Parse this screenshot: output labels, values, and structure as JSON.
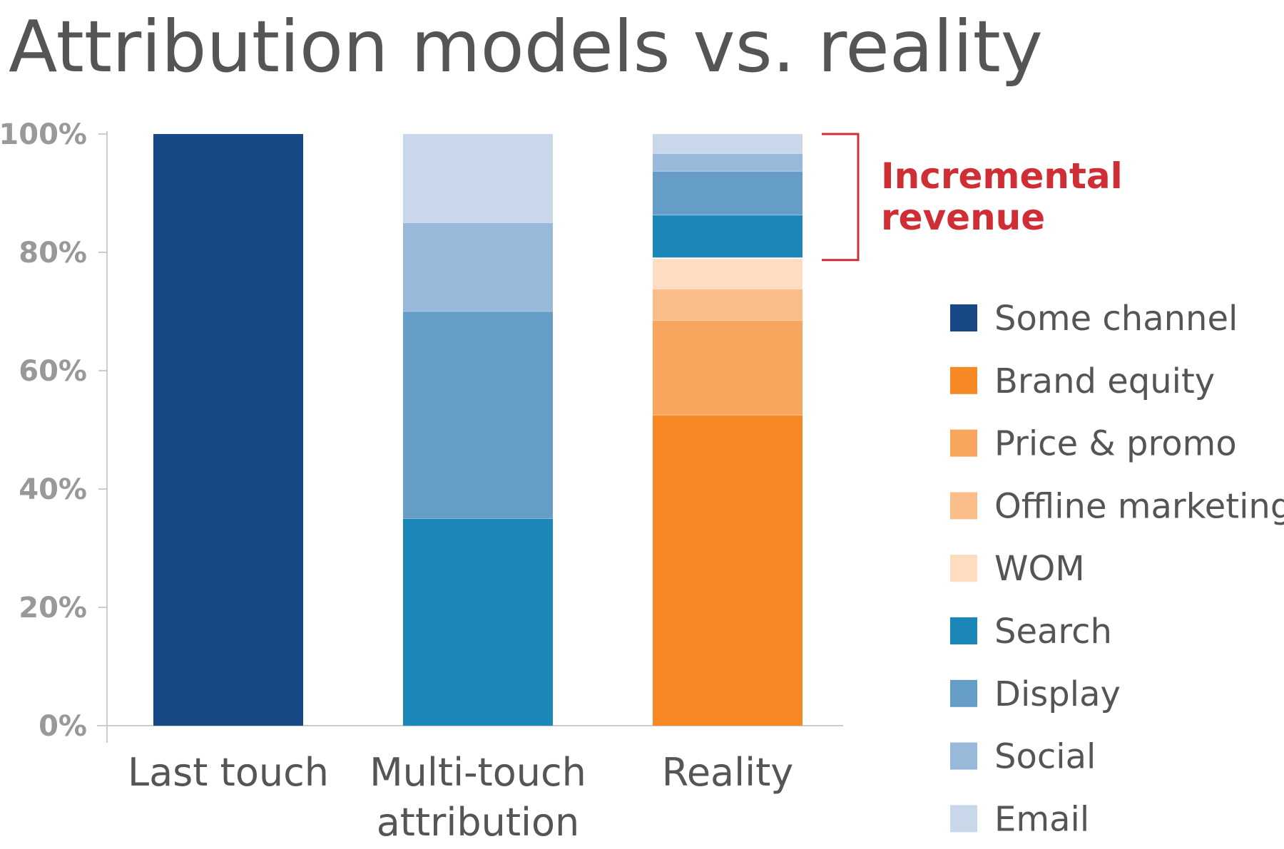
{
  "chart_data": {
    "type": "bar",
    "stacked": true,
    "title": "Attribution models vs. reality",
    "xlabel": "",
    "ylabel": "",
    "ylim": [
      0,
      100
    ],
    "y_unit": "%",
    "yticks": [
      0,
      20,
      40,
      60,
      80,
      100
    ],
    "ytick_labels": [
      "0%",
      "20%",
      "40%",
      "60%",
      "80%",
      "100%"
    ],
    "grid": false,
    "legend_position": "right",
    "categories": [
      [
        "Last touch"
      ],
      [
        "Multi-touch",
        "attribution"
      ],
      [
        "Reality"
      ]
    ],
    "series": [
      {
        "name": "Some channel",
        "color": "#174785",
        "values": [
          100,
          0,
          0
        ]
      },
      {
        "name": "Brand equity",
        "color": "#f68923",
        "values": [
          0,
          0,
          52.5
        ]
      },
      {
        "name": "Price & promo",
        "color": "#f8a55d",
        "values": [
          0,
          0,
          16
        ]
      },
      {
        "name": "Offline marketing",
        "color": "#fbbd8a",
        "values": [
          0,
          0,
          5.3
        ]
      },
      {
        "name": "WOM",
        "color": "#fddcbf",
        "values": [
          0,
          0,
          5.2
        ]
      },
      {
        "name": "Search",
        "color": "#1b87b9",
        "values": [
          0,
          35,
          7.3
        ]
      },
      {
        "name": "Display",
        "color": "#669dc7",
        "values": [
          0,
          35,
          7.4
        ]
      },
      {
        "name": "Social",
        "color": "#98b9da",
        "values": [
          0,
          15,
          3
        ]
      },
      {
        "name": "Email",
        "color": "#c8d8ea",
        "values": [
          0,
          15,
          3.3
        ]
      }
    ],
    "annotation": {
      "lines": [
        "Incremental",
        "revenue"
      ],
      "color": "#cf2e35",
      "from": 78.7,
      "to": 100
    }
  }
}
